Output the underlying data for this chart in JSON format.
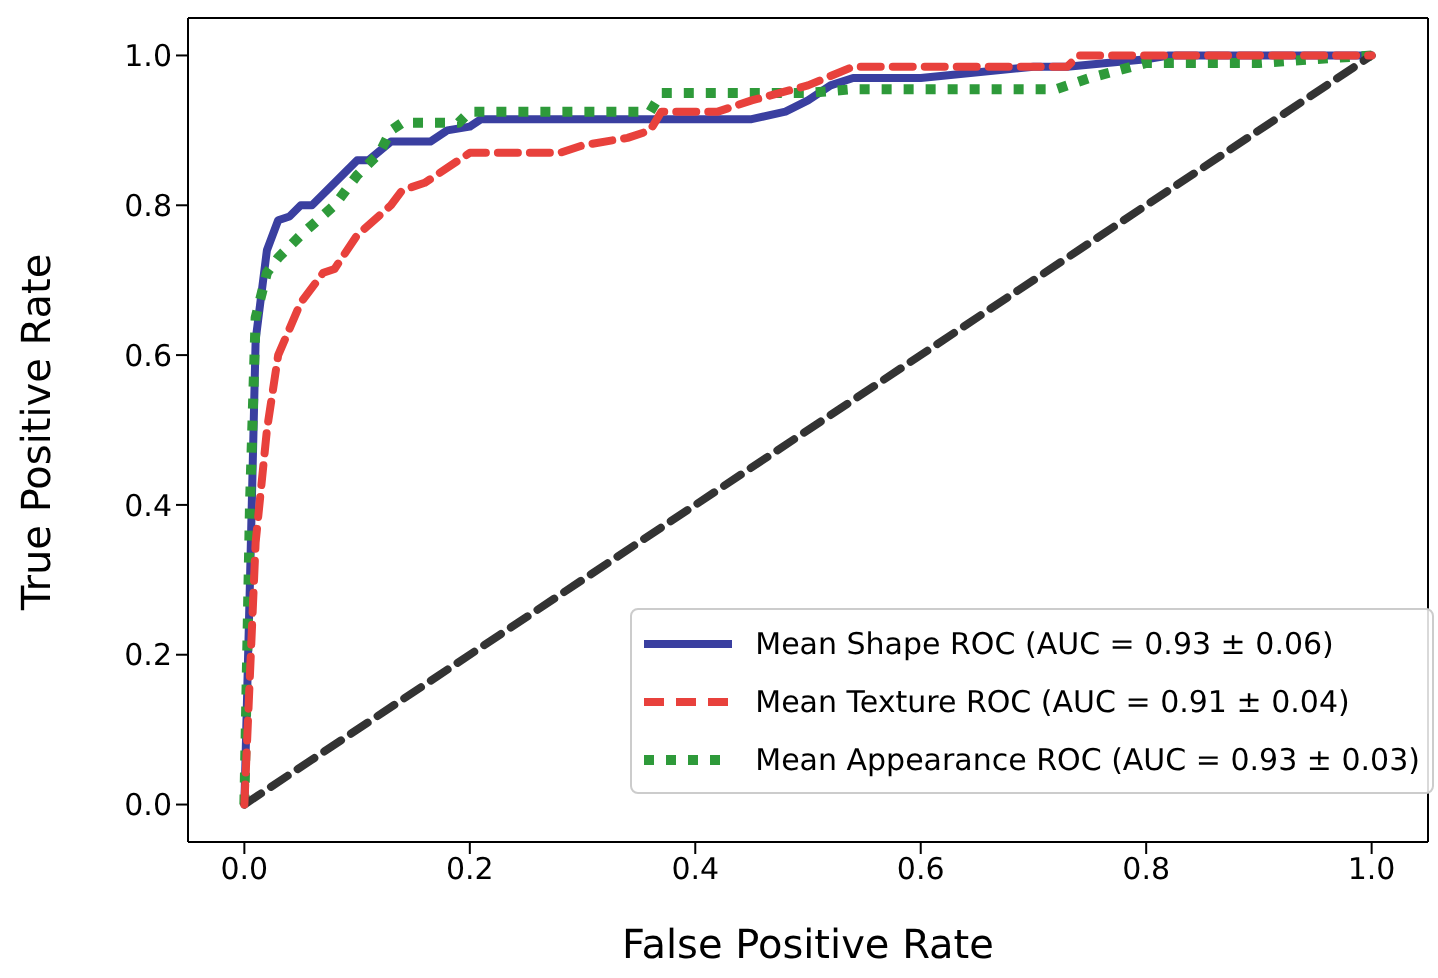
{
  "chart_data": {
    "type": "line",
    "xlabel": "False Positive Rate",
    "ylabel": "True Positive Rate",
    "xlim": [
      -0.05,
      1.05
    ],
    "ylim": [
      -0.05,
      1.05
    ],
    "xticks": [
      {
        "value": 0,
        "label": "0.0"
      },
      {
        "value": 0.2,
        "label": "0.2"
      },
      {
        "value": 0.4,
        "label": "0.4"
      },
      {
        "value": 0.6,
        "label": "0.6"
      },
      {
        "value": 0.8,
        "label": "0.8"
      },
      {
        "value": 1,
        "label": "1.0"
      }
    ],
    "yticks": [
      {
        "value": 0,
        "label": "0.0"
      },
      {
        "value": 0.2,
        "label": "0.2"
      },
      {
        "value": 0.4,
        "label": "0.4"
      },
      {
        "value": 0.6,
        "label": "0.6"
      },
      {
        "value": 0.8,
        "label": "0.8"
      },
      {
        "value": 1,
        "label": "1.0"
      }
    ],
    "grid": false,
    "legend": "bottom right",
    "marker": "none",
    "series": [
      {
        "name": "Mean Shape ROC (AUC = 0.93 ± 0.06)",
        "color": "#3a3fa0",
        "line_style": "solid",
        "x": [
          0,
          0.005,
          0.01,
          0.02,
          0.03,
          0.04,
          0.05,
          0.06,
          0.08,
          0.1,
          0.11,
          0.13,
          0.165,
          0.18,
          0.2,
          0.21,
          0.45,
          0.48,
          0.5,
          0.52,
          0.54,
          0.6,
          0.7,
          0.73,
          0.8,
          0.82,
          1
        ],
        "values": [
          0,
          0.3,
          0.62,
          0.74,
          0.78,
          0.785,
          0.8,
          0.8,
          0.83,
          0.86,
          0.86,
          0.885,
          0.885,
          0.9,
          0.905,
          0.915,
          0.915,
          0.925,
          0.94,
          0.96,
          0.97,
          0.97,
          0.985,
          0.985,
          0.995,
          1,
          1
        ]
      },
      {
        "name": "Mean Texture ROC (AUC = 0.91 ± 0.04)",
        "color": "#e8413c",
        "line_style": "dashed",
        "x": [
          0,
          0.01,
          0.02,
          0.03,
          0.05,
          0.07,
          0.08,
          0.1,
          0.13,
          0.14,
          0.16,
          0.2,
          0.28,
          0.3,
          0.34,
          0.36,
          0.37,
          0.42,
          0.45,
          0.5,
          0.54,
          0.73,
          0.74,
          1
        ],
        "values": [
          0,
          0.35,
          0.5,
          0.6,
          0.67,
          0.71,
          0.715,
          0.76,
          0.8,
          0.82,
          0.83,
          0.87,
          0.87,
          0.88,
          0.89,
          0.9,
          0.925,
          0.925,
          0.94,
          0.96,
          0.985,
          0.985,
          1,
          1
        ]
      },
      {
        "name": "Mean Appearance ROC (AUC = 0.93 ± 0.03)",
        "color": "#2e9a3a",
        "line_style": "dotted",
        "x": [
          0,
          0.005,
          0.01,
          0.02,
          0.03,
          0.05,
          0.08,
          0.1,
          0.12,
          0.13,
          0.14,
          0.19,
          0.2,
          0.36,
          0.37,
          0.5,
          0.54,
          0.72,
          0.75,
          0.8,
          0.9,
          1
        ],
        "values": [
          0,
          0.4,
          0.65,
          0.71,
          0.73,
          0.76,
          0.8,
          0.84,
          0.87,
          0.9,
          0.91,
          0.91,
          0.925,
          0.925,
          0.95,
          0.95,
          0.955,
          0.955,
          0.97,
          0.99,
          0.99,
          1
        ]
      },
      {
        "color": "#333333",
        "line_style": "dashed",
        "x": [
          0,
          1
        ],
        "values": [
          0,
          1
        ]
      }
    ]
  }
}
